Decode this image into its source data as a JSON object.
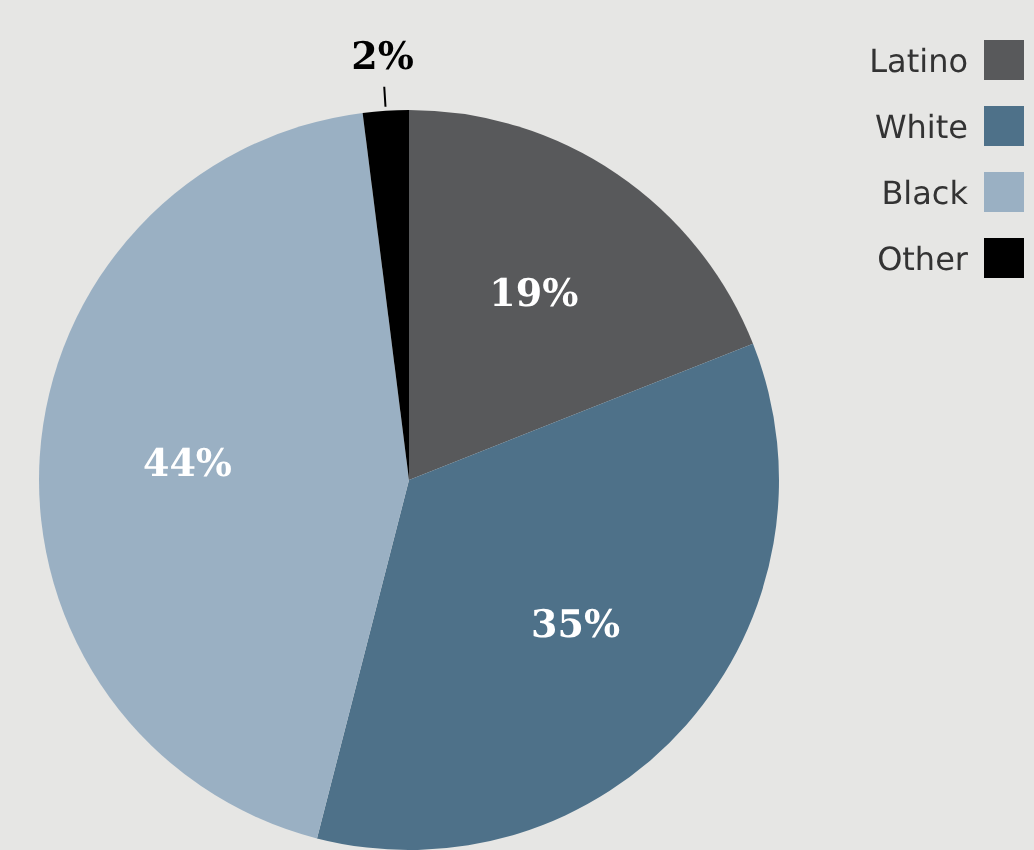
{
  "chart_data": {
    "type": "pie",
    "categories": [
      "Latino",
      "White",
      "Black",
      "Other"
    ],
    "values": [
      19,
      35,
      44,
      2
    ],
    "colors": [
      "#58595b",
      "#4e7189",
      "#9ab0c3",
      "#000000"
    ],
    "value_labels": [
      "19%",
      "35%",
      "44%",
      "2%"
    ],
    "legend": "top right"
  }
}
